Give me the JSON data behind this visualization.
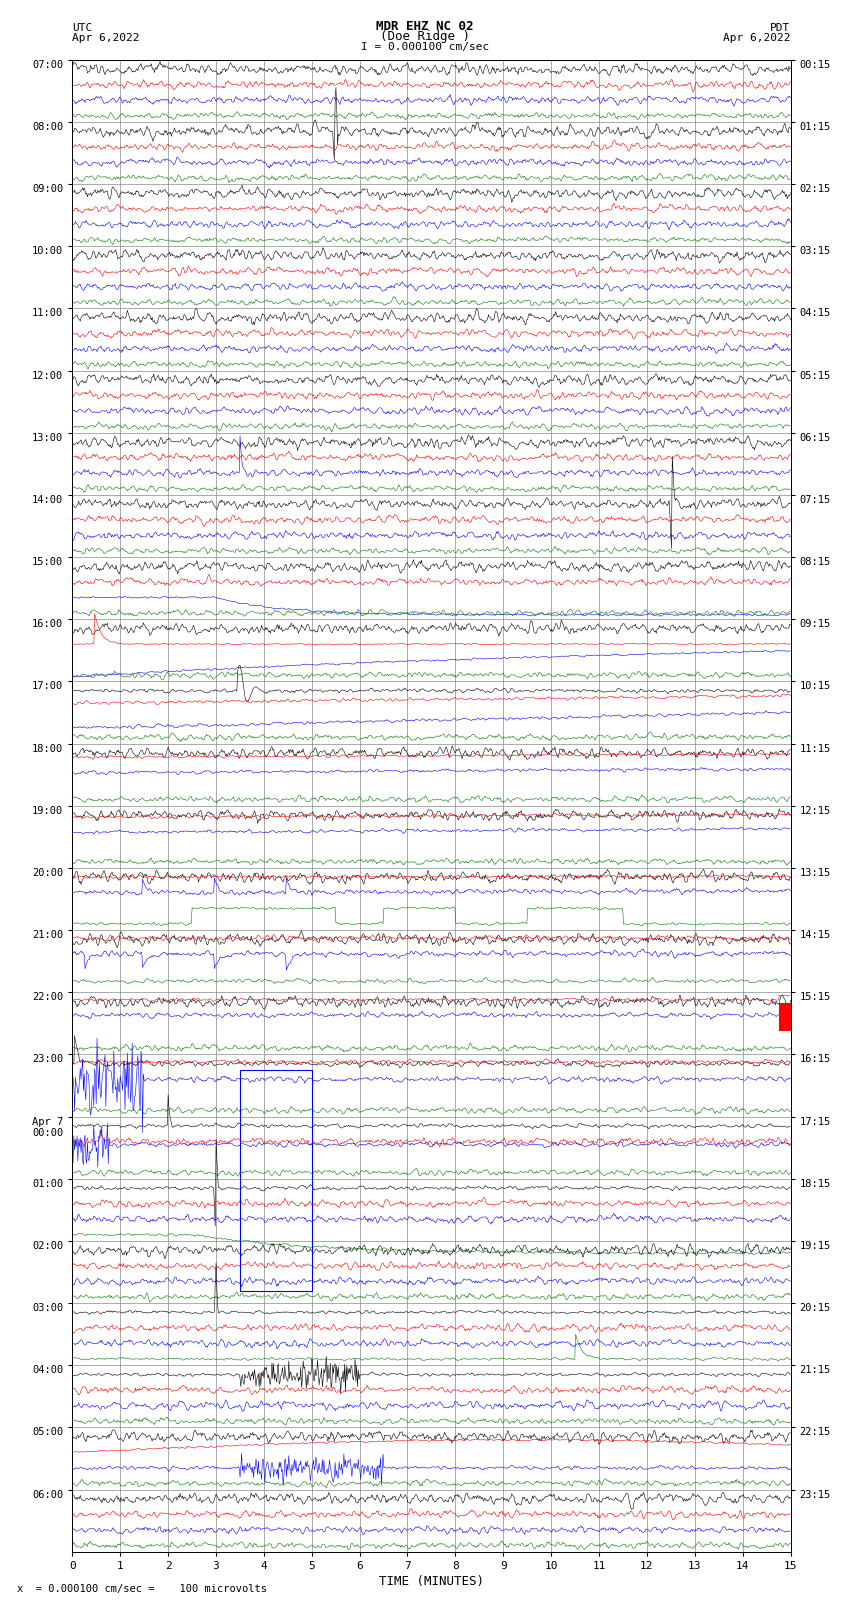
{
  "title_line1": "MDR EHZ NC 02",
  "title_line2": "(Doe Ridge )",
  "scale_label": "I = 0.000100 cm/sec",
  "left_label_top": "UTC",
  "left_label_date": "Apr 6,2022",
  "right_label_top": "PDT",
  "right_label_date": "Apr 6,2022",
  "bottom_label": "TIME (MINUTES)",
  "footnote": "x  = 0.000100 cm/sec =    100 microvolts",
  "xlabel_ticks": [
    0,
    1,
    2,
    3,
    4,
    5,
    6,
    7,
    8,
    9,
    10,
    11,
    12,
    13,
    14,
    15
  ],
  "utc_times_labels": [
    "07:00",
    "08:00",
    "09:00",
    "10:00",
    "11:00",
    "12:00",
    "13:00",
    "14:00",
    "15:00",
    "16:00",
    "17:00",
    "18:00",
    "19:00",
    "20:00",
    "21:00",
    "22:00",
    "23:00",
    "Apr 7\n00:00",
    "01:00",
    "02:00",
    "03:00",
    "04:00",
    "05:00",
    "06:00"
  ],
  "pdt_times_labels": [
    "00:15",
    "01:15",
    "02:15",
    "03:15",
    "04:15",
    "05:15",
    "06:15",
    "07:15",
    "08:15",
    "09:15",
    "10:15",
    "11:15",
    "12:15",
    "13:15",
    "14:15",
    "15:15",
    "16:15",
    "17:15",
    "18:15",
    "19:15",
    "20:15",
    "21:15",
    "22:15",
    "23:15"
  ],
  "background_color": "#ffffff",
  "grid_color": "#888888",
  "fig_width": 8.5,
  "fig_height": 16.13,
  "dpi": 100,
  "num_hours": 24,
  "minutes": 15,
  "traces_per_hour": 4,
  "trace_colors": [
    "black",
    "red",
    "blue",
    "green"
  ]
}
